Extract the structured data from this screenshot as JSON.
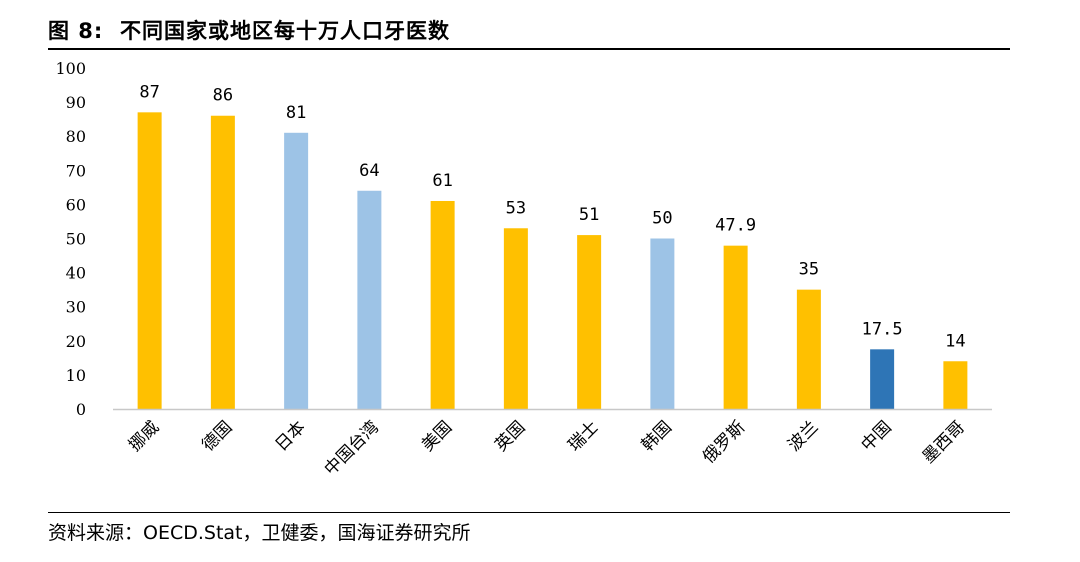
{
  "figure": {
    "label": "图 8:",
    "title": "不同国家或地区每十万人口牙医数"
  },
  "source": "资料来源：OECD.Stat，卫健委，国海证券研究所",
  "colors": {
    "gold": "#FFC000",
    "lightblue": "#9DC3E6",
    "darkblue": "#2E75B6"
  },
  "chart_data": {
    "type": "bar",
    "categories": [
      "挪威",
      "德国",
      "日本",
      "中国台湾",
      "美国",
      "英国",
      "瑞士",
      "韩国",
      "俄罗斯",
      "波兰",
      "中国",
      "墨西哥"
    ],
    "values": [
      87,
      86,
      81,
      64,
      61,
      53,
      51,
      50,
      47.9,
      35,
      17.5,
      14
    ],
    "data_labels": [
      "87",
      "86",
      "81",
      "64",
      "61",
      "53",
      "51",
      "50",
      "47.9",
      "35",
      "17.5",
      "14"
    ],
    "bar_colors": [
      "gold",
      "gold",
      "lightblue",
      "lightblue",
      "gold",
      "gold",
      "gold",
      "lightblue",
      "gold",
      "gold",
      "darkblue",
      "gold"
    ],
    "ylim": [
      0,
      100
    ],
    "yticks": [
      "0",
      "10",
      "20",
      "30",
      "40",
      "50",
      "60",
      "70",
      "80",
      "90",
      "100"
    ],
    "title": "",
    "xlabel": "",
    "ylabel": "",
    "grid": false,
    "legend": "none"
  }
}
